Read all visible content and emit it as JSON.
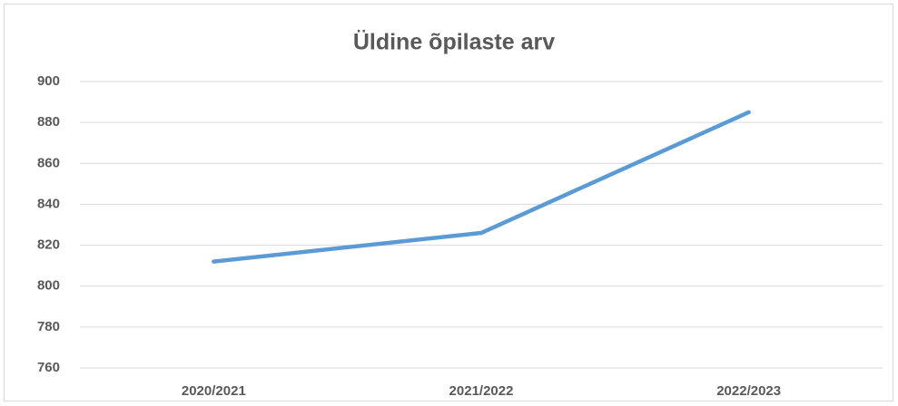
{
  "chart_data": {
    "type": "line",
    "title": "Üldine õpilaste arv",
    "categories": [
      "2020/2021",
      "2021/2022",
      "2022/2023"
    ],
    "values": [
      812,
      826,
      885
    ],
    "color": "#5b9bd5",
    "ylim": [
      760,
      900
    ],
    "yticks": [
      760,
      780,
      800,
      820,
      840,
      860,
      880,
      900
    ],
    "grid": true
  }
}
